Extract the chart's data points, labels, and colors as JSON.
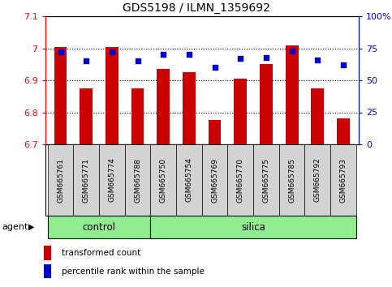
{
  "title": "GDS5198 / ILMN_1359692",
  "categories": [
    "GSM665761",
    "GSM665771",
    "GSM665774",
    "GSM665788",
    "GSM665750",
    "GSM665754",
    "GSM665769",
    "GSM665770",
    "GSM665775",
    "GSM665785",
    "GSM665792",
    "GSM665793"
  ],
  "red_values": [
    7.005,
    6.875,
    7.003,
    6.875,
    6.935,
    6.925,
    6.775,
    6.905,
    6.95,
    7.01,
    6.875,
    6.78
  ],
  "blue_values_pct": [
    72,
    65,
    72,
    65,
    70,
    70,
    60,
    67,
    68,
    73,
    66,
    62
  ],
  "ylim_left": [
    6.7,
    7.1
  ],
  "ylim_right": [
    0,
    100
  ],
  "yright_ticks": [
    0,
    25,
    50,
    75,
    100
  ],
  "yright_labels": [
    "0",
    "25",
    "50",
    "75",
    "100%"
  ],
  "yleft_ticks": [
    6.7,
    6.8,
    6.9,
    7.0,
    7.1
  ],
  "yleft_labels": [
    "6.7",
    "6.8",
    "6.9",
    "7",
    "7.1"
  ],
  "bar_color": "#cc0000",
  "dot_color": "#0000cc",
  "control_label": "control",
  "silica_label": "silica",
  "agent_label": "agent",
  "n_control": 4,
  "n_silica": 8,
  "legend_red": "transformed count",
  "legend_blue": "percentile rank within the sample",
  "green_bg": "#90ee90",
  "tick_label_bg": "#d3d3d3",
  "bar_width": 0.5,
  "figsize": [
    4.83,
    3.54
  ],
  "dpi": 100
}
